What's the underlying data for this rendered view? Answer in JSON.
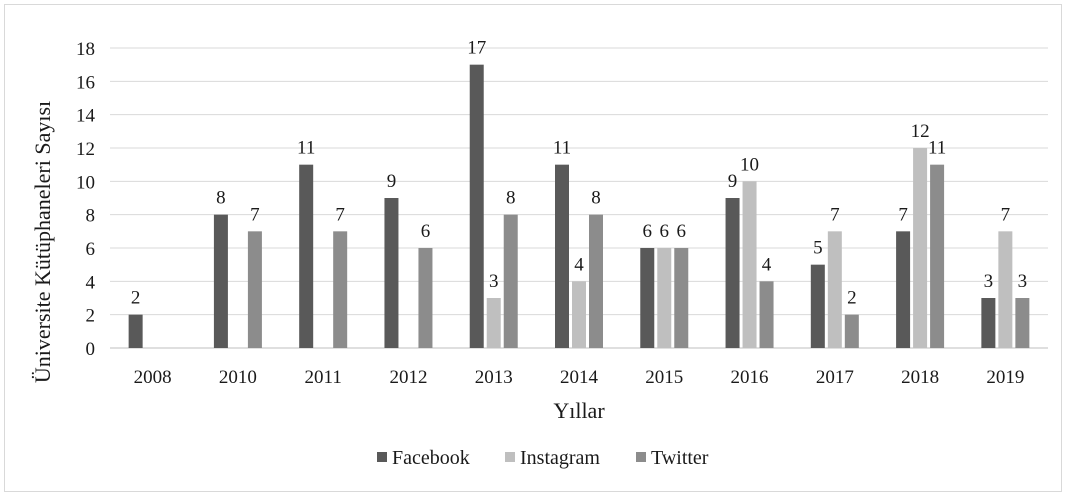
{
  "chart_data": {
    "type": "bar",
    "categories": [
      "2008",
      "2010",
      "2011",
      "2012",
      "2013",
      "2014",
      "2015",
      "2016",
      "2017",
      "2018",
      "2019"
    ],
    "series": [
      {
        "name": "Facebook",
        "color": "#595959",
        "values": [
          2,
          8,
          11,
          9,
          17,
          11,
          6,
          9,
          5,
          7,
          3
        ]
      },
      {
        "name": "Instagram",
        "color": "#bfbfbf",
        "values": [
          null,
          null,
          null,
          null,
          3,
          4,
          6,
          10,
          7,
          12,
          7
        ]
      },
      {
        "name": "Twitter",
        "color": "#8c8c8c",
        "values": [
          null,
          7,
          7,
          6,
          8,
          8,
          6,
          4,
          2,
          11,
          3
        ]
      }
    ],
    "xlabel": "Yıllar",
    "ylabel": "Üniversite Kütüphaneleri Sayısı",
    "ylim": [
      0,
      18
    ],
    "yticks": [
      0,
      2,
      4,
      6,
      8,
      10,
      12,
      14,
      16,
      18
    ],
    "grid": true,
    "legend_position": "bottom"
  }
}
